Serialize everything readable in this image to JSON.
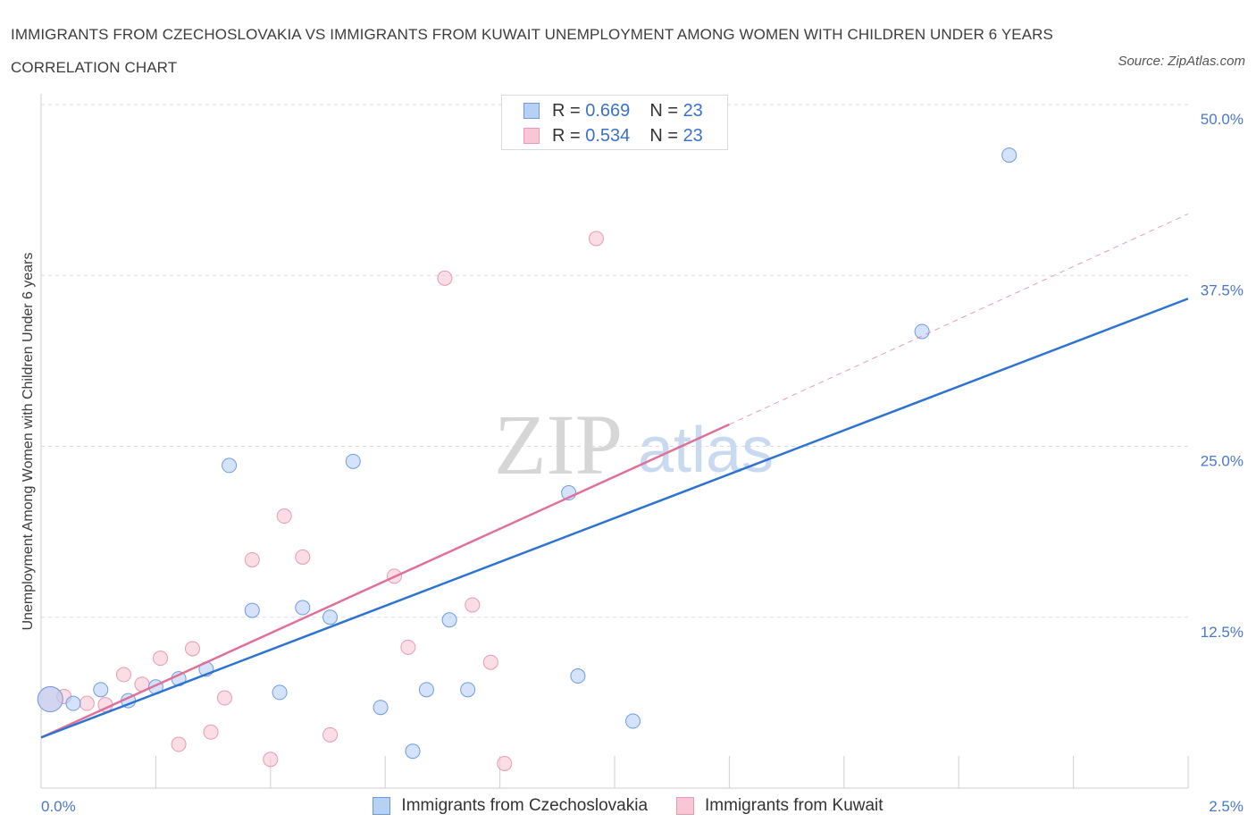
{
  "title": "IMMIGRANTS FROM CZECHOSLOVAKIA VS IMMIGRANTS FROM KUWAIT UNEMPLOYMENT AMONG WOMEN WITH CHILDREN UNDER 6 YEARS CORRELATION CHART",
  "source": "Source: ZipAtlas.com",
  "watermark": {
    "zip": "ZIP",
    "atlas": "atlas"
  },
  "colors": {
    "blue_fill": "#b7d1f5",
    "blue_stroke": "#6e9be0",
    "blue_line": "#2f73d1",
    "pink_fill": "#f8c6d5",
    "pink_stroke": "#e89ab2",
    "pink_line": "#e0709a",
    "axis_text": "#4a78c8",
    "grid": "#d9dde3"
  },
  "legend_top": [
    {
      "r_label": "R = ",
      "r_value": "0.669",
      "n_label": "N = ",
      "n_value": "23"
    },
    {
      "r_label": "R = ",
      "r_value": "0.534",
      "n_label": "N = ",
      "n_value": "23"
    }
  ],
  "legend_bottom": [
    "Immigrants from Czechoslovakia",
    "Immigrants from Kuwait"
  ],
  "chart_data": {
    "type": "scatter",
    "title": "IMMIGRANTS FROM CZECHOSLOVAKIA VS IMMIGRANTS FROM KUWAIT UNEMPLOYMENT AMONG WOMEN WITH CHILDREN UNDER 6 YEARS CORRELATION CHART",
    "xlabel": "",
    "ylabel": "Unemployment Among Women with Children Under 6 years",
    "xlim": [
      0,
      2.5
    ],
    "ylim": [
      0,
      50
    ],
    "x_tick_labels": [
      "0.0%",
      "2.5%"
    ],
    "y_ticks": [
      12.5,
      25.0,
      37.5,
      50.0
    ],
    "y_tick_labels": [
      "12.5%",
      "25.0%",
      "37.5%",
      "50.0%"
    ],
    "grid": true,
    "series": [
      {
        "name": "Immigrants from Czechoslovakia",
        "R": 0.669,
        "N": 23,
        "trend": {
          "x0": 0,
          "y0": 3.7,
          "x1": 2.5,
          "y1": 35.8
        },
        "points": [
          {
            "x": 0.02,
            "y": 6.5,
            "big": true
          },
          {
            "x": 0.07,
            "y": 6.2
          },
          {
            "x": 0.13,
            "y": 7.2
          },
          {
            "x": 0.19,
            "y": 6.4
          },
          {
            "x": 0.25,
            "y": 7.4
          },
          {
            "x": 0.3,
            "y": 8.0
          },
          {
            "x": 0.36,
            "y": 8.7
          },
          {
            "x": 0.41,
            "y": 23.6
          },
          {
            "x": 0.46,
            "y": 13.0
          },
          {
            "x": 0.52,
            "y": 7.0
          },
          {
            "x": 0.57,
            "y": 13.2
          },
          {
            "x": 0.63,
            "y": 12.5
          },
          {
            "x": 0.68,
            "y": 23.9
          },
          {
            "x": 0.74,
            "y": 5.9
          },
          {
            "x": 0.81,
            "y": 2.7
          },
          {
            "x": 0.84,
            "y": 7.2
          },
          {
            "x": 0.89,
            "y": 12.3
          },
          {
            "x": 0.93,
            "y": 7.2
          },
          {
            "x": 1.15,
            "y": 21.6
          },
          {
            "x": 1.17,
            "y": 8.2
          },
          {
            "x": 1.29,
            "y": 4.9
          },
          {
            "x": 1.92,
            "y": 33.4
          },
          {
            "x": 2.11,
            "y": 46.3
          }
        ]
      },
      {
        "name": "Immigrants from Kuwait",
        "R": 0.534,
        "N": 23,
        "trend": {
          "x0": 0,
          "y0": 3.7,
          "x1": 1.5,
          "y1": 26.6,
          "dash_x1": 2.5,
          "dash_y1": 42.0
        },
        "points": [
          {
            "x": 0.02,
            "y": 6.5,
            "big": true
          },
          {
            "x": 0.05,
            "y": 6.7
          },
          {
            "x": 0.1,
            "y": 6.2
          },
          {
            "x": 0.14,
            "y": 6.1
          },
          {
            "x": 0.18,
            "y": 8.3
          },
          {
            "x": 0.22,
            "y": 7.6
          },
          {
            "x": 0.26,
            "y": 9.5
          },
          {
            "x": 0.3,
            "y": 3.2
          },
          {
            "x": 0.33,
            "y": 10.2
          },
          {
            "x": 0.37,
            "y": 4.1
          },
          {
            "x": 0.4,
            "y": 6.6
          },
          {
            "x": 0.46,
            "y": 16.7
          },
          {
            "x": 0.5,
            "y": 2.1
          },
          {
            "x": 0.53,
            "y": 19.9
          },
          {
            "x": 0.57,
            "y": 16.9
          },
          {
            "x": 0.63,
            "y": 3.9
          },
          {
            "x": 0.77,
            "y": 15.5
          },
          {
            "x": 0.8,
            "y": 10.3
          },
          {
            "x": 0.88,
            "y": 37.3
          },
          {
            "x": 0.94,
            "y": 13.4
          },
          {
            "x": 0.98,
            "y": 9.2
          },
          {
            "x": 1.01,
            "y": 1.8
          },
          {
            "x": 1.21,
            "y": 40.2
          }
        ]
      }
    ]
  }
}
